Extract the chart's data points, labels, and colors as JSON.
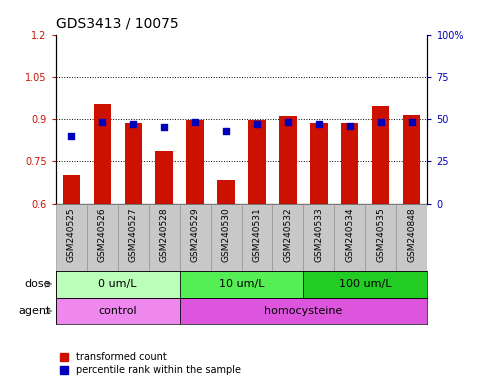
{
  "title": "GDS3413 / 10075",
  "samples": [
    "GSM240525",
    "GSM240526",
    "GSM240527",
    "GSM240528",
    "GSM240529",
    "GSM240530",
    "GSM240531",
    "GSM240532",
    "GSM240533",
    "GSM240534",
    "GSM240535",
    "GSM240848"
  ],
  "red_values": [
    0.7,
    0.955,
    0.885,
    0.785,
    0.895,
    0.685,
    0.895,
    0.91,
    0.885,
    0.885,
    0.945,
    0.915
  ],
  "blue_values_pct": [
    40,
    48,
    47,
    45,
    48,
    43,
    47,
    48,
    47,
    46,
    48,
    48
  ],
  "ylim_left": [
    0.6,
    1.2
  ],
  "ylim_right": [
    0,
    100
  ],
  "yticks_left": [
    0.6,
    0.75,
    0.9,
    1.05,
    1.2
  ],
  "yticks_right": [
    0,
    25,
    50,
    75,
    100
  ],
  "ytick_labels_right": [
    "0",
    "25",
    "50",
    "75",
    "100%"
  ],
  "hlines": [
    0.75,
    0.9,
    1.05
  ],
  "dose_groups": [
    {
      "label": "0 um/L",
      "start": 0,
      "end": 4,
      "color": "#bbffbb"
    },
    {
      "label": "10 um/L",
      "start": 4,
      "end": 8,
      "color": "#55ee55"
    },
    {
      "label": "100 um/L",
      "start": 8,
      "end": 12,
      "color": "#22cc22"
    }
  ],
  "agent_groups": [
    {
      "label": "control",
      "start": 0,
      "end": 4,
      "color": "#ee88ee"
    },
    {
      "label": "homocysteine",
      "start": 4,
      "end": 12,
      "color": "#dd55dd"
    }
  ],
  "bar_color": "#cc1100",
  "dot_color": "#0000bb",
  "bar_width": 0.55,
  "dot_size": 22,
  "legend_red": "transformed count",
  "legend_blue": "percentile rank within the sample",
  "xlabel_dose": "dose",
  "xlabel_agent": "agent",
  "title_fontsize": 10,
  "tick_fontsize": 7,
  "sample_fontsize": 6.5,
  "label_fontsize": 8,
  "group_fontsize": 8,
  "legend_fontsize": 7,
  "xticklabel_bg": "#c8c8c8",
  "xticklabel_border": "#888888"
}
